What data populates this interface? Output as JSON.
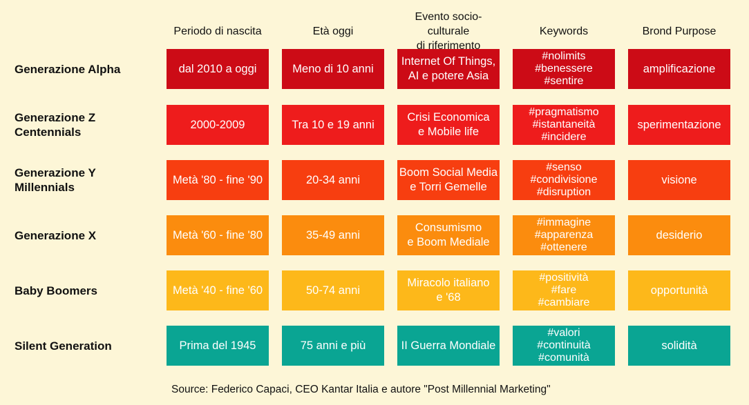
{
  "headers": [
    "Periodo di nascita",
    "Età oggi",
    "Evento socio-culturale\ndi riferimento",
    "Keywords",
    "Brond Purpose"
  ],
  "rows": [
    {
      "label": "Generazione Alpha",
      "color": "#cc0b16",
      "cells": [
        "dal 2010 a oggi",
        "Meno di 10 anni",
        "Internet Of Things,\nAI e potere Asia",
        "#nolimits\n#benessere\n#sentire",
        "amplificazione"
      ]
    },
    {
      "label": "Generazione Z\nCentennials",
      "color": "#ee1c1c",
      "cells": [
        "2000-2009",
        "Tra 10 e 19 anni",
        "Crisi Economica\ne Mobile life",
        "#pragmatismo\n#istantaneità\n#incidere",
        "sperimentazione"
      ]
    },
    {
      "label": "Generazione Y\nMillennials",
      "color": "#f73e10",
      "cells": [
        "Metà '80 - fine '90",
        "20-34 anni",
        "Boom Social Media\ne Torri Gemelle",
        "#senso\n#condivisione\n#disruption",
        "visione"
      ]
    },
    {
      "label": "Generazione X",
      "color": "#fb8c0e",
      "cells": [
        "Metà '60 - fine '80",
        "35-49 anni",
        "Consumismo\ne Boom Mediale",
        "#immagine\n#apparenza\n#ottenere",
        "desiderio"
      ]
    },
    {
      "label": "Baby Boomers",
      "color": "#fdb81a",
      "cells": [
        "Metà '40 - fine '60",
        "50-74 anni",
        "Miracolo italiano\ne '68",
        "#positività\n#fare\n#cambiare",
        "opportunità"
      ]
    },
    {
      "label": "Silent Generation",
      "color": "#0aa593",
      "cells": [
        "Prima del 1945",
        "75 anni e più",
        "II Guerra Mondiale",
        "#valori\n#continuità\n#comunità",
        "solidità"
      ]
    }
  ],
  "source": "Source: Federico Capaci, CEO Kantar Italia e autore \"Post Millennial Marketing\""
}
